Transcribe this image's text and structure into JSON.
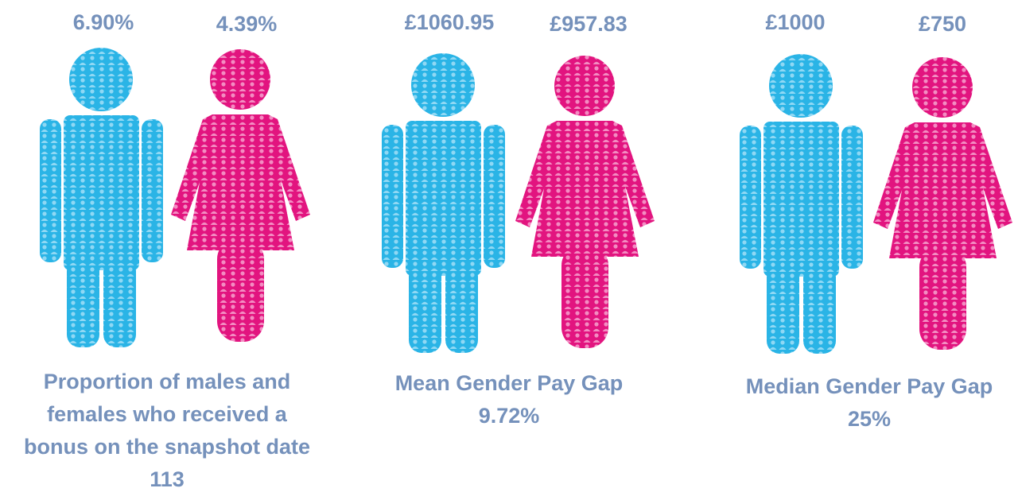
{
  "panels": [
    {
      "male_label": "6.90%",
      "female_label": "4.39%",
      "caption": [
        "Proportion of males and",
        "females who received a",
        "bonus on the snapshot date",
        "113"
      ]
    },
    {
      "male_label": "£1060.95",
      "female_label": "£957.83",
      "caption": [
        "Mean Gender Pay Gap",
        "9.72%"
      ]
    },
    {
      "male_label": "£1000",
      "female_label": "£750",
      "caption": [
        "Median Gender Pay Gap",
        "25%"
      ]
    }
  ]
}
